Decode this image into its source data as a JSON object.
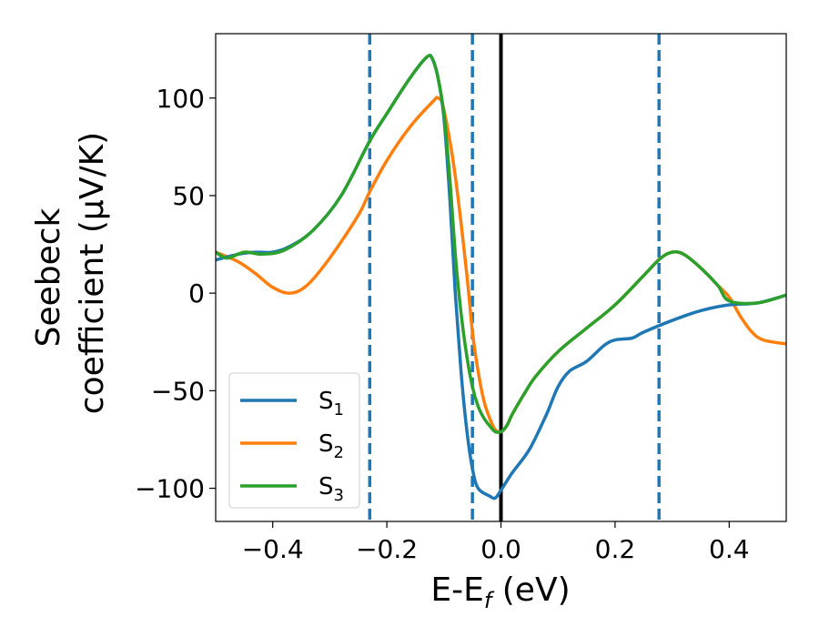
{
  "chart_data": {
    "type": "line",
    "xlabel": "E-E_f (eV)",
    "xlabel_parts": {
      "main": "E-E",
      "sub": "f",
      "tail": " (eV)"
    },
    "ylabel_lines": [
      "Seebeck",
      "coefficient  (μV/K)"
    ],
    "xlim": [
      -0.5,
      0.5
    ],
    "ylim": [
      -117,
      133
    ],
    "xticks": [
      -0.4,
      -0.2,
      0.0,
      0.2,
      0.4
    ],
    "xtick_labels": [
      "−0.4",
      "−0.2",
      "0.0",
      "0.2",
      "0.4"
    ],
    "yticks": [
      -100,
      -50,
      0,
      50,
      100
    ],
    "ytick_labels": [
      "−100",
      "−50",
      "0",
      "50",
      "100"
    ],
    "grid": false,
    "legend": "lower-left",
    "vertical_lines": [
      {
        "x": 0.0,
        "style": "solid",
        "color": "#000000"
      },
      {
        "x": -0.23,
        "style": "dashed",
        "color": "#1f77b4"
      },
      {
        "x": -0.05,
        "style": "dashed",
        "color": "#1f77b4"
      },
      {
        "x": 0.277,
        "style": "dashed",
        "color": "#1f77b4"
      }
    ],
    "series": [
      {
        "name": "S",
        "sub": "2",
        "color": "#ff7f0e",
        "points": [
          [
            -0.5,
            21
          ],
          [
            -0.46,
            16
          ],
          [
            -0.43,
            10
          ],
          [
            -0.4,
            3
          ],
          [
            -0.37,
            0
          ],
          [
            -0.34,
            4
          ],
          [
            -0.3,
            18
          ],
          [
            -0.25,
            40
          ],
          [
            -0.23,
            52
          ],
          [
            -0.2,
            68
          ],
          [
            -0.16,
            85
          ],
          [
            -0.12,
            98
          ],
          [
            -0.11,
            100
          ],
          [
            -0.1,
            94
          ],
          [
            -0.08,
            60
          ],
          [
            -0.06,
            10
          ],
          [
            -0.05,
            -20
          ],
          [
            -0.04,
            -40
          ],
          [
            -0.03,
            -55
          ],
          [
            -0.02,
            -64
          ],
          [
            -0.01,
            -70
          ],
          [
            0.0,
            -71
          ],
          [
            0.01,
            -68
          ],
          [
            0.02,
            -62
          ],
          [
            0.04,
            -52
          ],
          [
            0.06,
            -43
          ],
          [
            0.1,
            -30
          ],
          [
            0.15,
            -18
          ],
          [
            0.2,
            -6
          ],
          [
            0.25,
            9
          ],
          [
            0.28,
            18
          ],
          [
            0.3,
            21
          ],
          [
            0.32,
            20
          ],
          [
            0.35,
            13
          ],
          [
            0.38,
            4
          ],
          [
            0.4,
            -2
          ],
          [
            0.42,
            -12
          ],
          [
            0.44,
            -20
          ],
          [
            0.46,
            -24
          ],
          [
            0.5,
            -26
          ]
        ]
      },
      {
        "name": "S",
        "sub": "1",
        "color": "#1f77b4",
        "points": [
          [
            -0.5,
            17
          ],
          [
            -0.46,
            20
          ],
          [
            -0.43,
            21
          ],
          [
            -0.4,
            21
          ],
          [
            -0.37,
            24
          ],
          [
            -0.33,
            32
          ],
          [
            -0.28,
            50
          ],
          [
            -0.23,
            78
          ],
          [
            -0.2,
            92
          ],
          [
            -0.16,
            110
          ],
          [
            -0.13,
            121
          ],
          [
            -0.12,
            120
          ],
          [
            -0.11,
            110
          ],
          [
            -0.1,
            90
          ],
          [
            -0.09,
            50
          ],
          [
            -0.08,
            0
          ],
          [
            -0.07,
            -40
          ],
          [
            -0.06,
            -70
          ],
          [
            -0.05,
            -90
          ],
          [
            -0.04,
            -100
          ],
          [
            -0.02,
            -104
          ],
          [
            -0.01,
            -105
          ],
          [
            0.0,
            -101
          ],
          [
            0.02,
            -92
          ],
          [
            0.05,
            -80
          ],
          [
            0.08,
            -62
          ],
          [
            0.1,
            -48
          ],
          [
            0.12,
            -40
          ],
          [
            0.15,
            -35
          ],
          [
            0.18,
            -27
          ],
          [
            0.2,
            -24
          ],
          [
            0.23,
            -23
          ],
          [
            0.25,
            -20
          ],
          [
            0.3,
            -14
          ],
          [
            0.35,
            -9
          ],
          [
            0.4,
            -6
          ],
          [
            0.45,
            -5
          ],
          [
            0.5,
            -1
          ]
        ]
      },
      {
        "name": "S",
        "sub": "3",
        "color": "#2ca02c",
        "points": [
          [
            -0.5,
            21
          ],
          [
            -0.48,
            18
          ],
          [
            -0.45,
            21
          ],
          [
            -0.42,
            20
          ],
          [
            -0.38,
            22
          ],
          [
            -0.33,
            32
          ],
          [
            -0.28,
            50
          ],
          [
            -0.23,
            78
          ],
          [
            -0.2,
            92
          ],
          [
            -0.16,
            110
          ],
          [
            -0.13,
            121
          ],
          [
            -0.12,
            120
          ],
          [
            -0.11,
            110
          ],
          [
            -0.1,
            92
          ],
          [
            -0.09,
            60
          ],
          [
            -0.08,
            20
          ],
          [
            -0.07,
            -10
          ],
          [
            -0.06,
            -32
          ],
          [
            -0.05,
            -48
          ],
          [
            -0.04,
            -58
          ],
          [
            -0.03,
            -64
          ],
          [
            -0.02,
            -68
          ],
          [
            -0.01,
            -71
          ],
          [
            0.0,
            -71
          ],
          [
            0.01,
            -68
          ],
          [
            0.02,
            -62
          ],
          [
            0.04,
            -52
          ],
          [
            0.06,
            -43
          ],
          [
            0.1,
            -30
          ],
          [
            0.15,
            -18
          ],
          [
            0.2,
            -6
          ],
          [
            0.25,
            9
          ],
          [
            0.28,
            18
          ],
          [
            0.3,
            21
          ],
          [
            0.32,
            20
          ],
          [
            0.35,
            13
          ],
          [
            0.38,
            4
          ],
          [
            0.4,
            -4
          ],
          [
            0.45,
            -5
          ],
          [
            0.5,
            -1
          ]
        ]
      }
    ],
    "legend_order": [
      1,
      0,
      2
    ]
  }
}
